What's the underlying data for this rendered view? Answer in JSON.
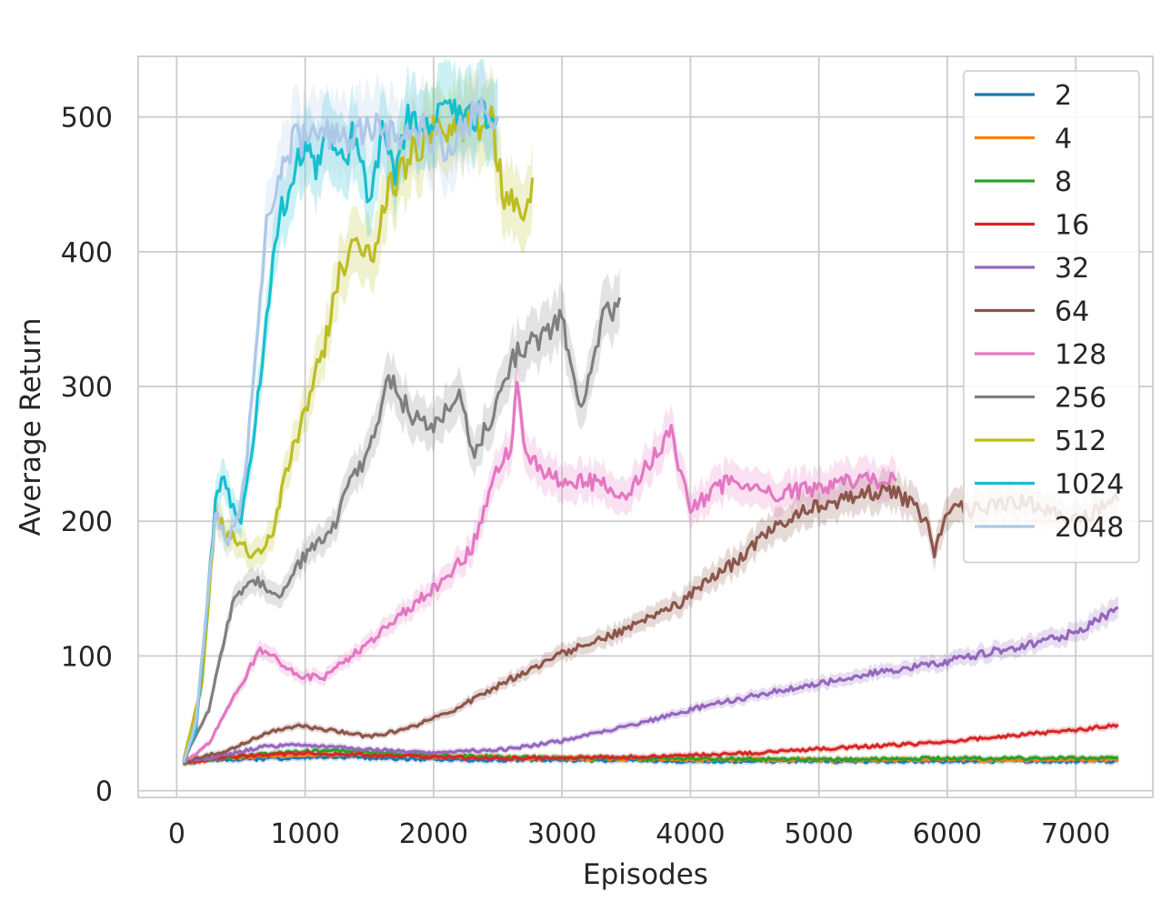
{
  "chart_data": {
    "type": "line",
    "title": "",
    "xlabel": "Episodes",
    "ylabel": "Average Return",
    "xlim": [
      -300,
      7600
    ],
    "ylim": [
      -5,
      545
    ],
    "x_ticks": [
      0,
      1000,
      2000,
      3000,
      4000,
      5000,
      6000,
      7000
    ],
    "y_ticks": [
      0,
      100,
      200,
      300,
      400,
      500
    ],
    "x_tick_labels": [
      "0",
      "1000",
      "2000",
      "3000",
      "4000",
      "5000",
      "6000",
      "7000"
    ],
    "y_tick_labels": [
      "0",
      "100",
      "200",
      "300",
      "400",
      "500"
    ],
    "grid": true,
    "legend_position": "top-right",
    "series": [
      {
        "name": "2",
        "color": "#1f77b4",
        "points": [
          [
            50,
            21
          ],
          [
            300,
            23
          ],
          [
            800,
            24
          ],
          [
            1200,
            25
          ],
          [
            1700,
            24
          ],
          [
            2200,
            23
          ],
          [
            3000,
            23
          ],
          [
            4000,
            22
          ],
          [
            5000,
            22
          ],
          [
            6000,
            22
          ],
          [
            7000,
            22
          ],
          [
            7330,
            22
          ]
        ]
      },
      {
        "name": "4",
        "color": "#ff7f0e",
        "points": [
          [
            50,
            21
          ],
          [
            300,
            24
          ],
          [
            800,
            26
          ],
          [
            1200,
            27
          ],
          [
            1700,
            26
          ],
          [
            2200,
            25
          ],
          [
            3000,
            24
          ],
          [
            4000,
            23
          ],
          [
            5000,
            23
          ],
          [
            6000,
            23
          ],
          [
            7000,
            23
          ],
          [
            7330,
            23
          ]
        ]
      },
      {
        "name": "8",
        "color": "#2ca02c",
        "points": [
          [
            50,
            21
          ],
          [
            300,
            24
          ],
          [
            800,
            28
          ],
          [
            1200,
            30
          ],
          [
            1800,
            27
          ],
          [
            2500,
            25
          ],
          [
            3200,
            24
          ],
          [
            4000,
            24
          ],
          [
            5000,
            23
          ],
          [
            6000,
            24
          ],
          [
            7000,
            24
          ],
          [
            7330,
            25
          ]
        ]
      },
      {
        "name": "16",
        "color": "#d62728",
        "points": [
          [
            50,
            21
          ],
          [
            400,
            25
          ],
          [
            1000,
            28
          ],
          [
            1600,
            26
          ],
          [
            2500,
            24
          ],
          [
            3500,
            25
          ],
          [
            4300,
            27
          ],
          [
            5000,
            31
          ],
          [
            5800,
            35
          ],
          [
            6400,
            40
          ],
          [
            7000,
            45
          ],
          [
            7330,
            49
          ]
        ]
      },
      {
        "name": "32",
        "color": "#9467bd",
        "points": [
          [
            50,
            21
          ],
          [
            400,
            27
          ],
          [
            700,
            33
          ],
          [
            1000,
            34
          ],
          [
            1400,
            31
          ],
          [
            2000,
            28
          ],
          [
            2600,
            31
          ],
          [
            3000,
            37
          ],
          [
            3600,
            50
          ],
          [
            4200,
            65
          ],
          [
            4800,
            76
          ],
          [
            5400,
            87
          ],
          [
            6000,
            96
          ],
          [
            6600,
            108
          ],
          [
            7000,
            117
          ],
          [
            7330,
            136
          ]
        ]
      },
      {
        "name": "64",
        "color": "#8c564b",
        "points": [
          [
            50,
            21
          ],
          [
            400,
            30
          ],
          [
            700,
            43
          ],
          [
            950,
            48
          ],
          [
            1200,
            45
          ],
          [
            1500,
            40
          ],
          [
            1800,
            46
          ],
          [
            2200,
            62
          ],
          [
            2600,
            83
          ],
          [
            3000,
            102
          ],
          [
            3500,
            120
          ],
          [
            3900,
            138
          ],
          [
            4300,
            166
          ],
          [
            4700,
            198
          ],
          [
            5000,
            212
          ],
          [
            5300,
            220
          ],
          [
            5600,
            222
          ],
          [
            5850,
            200
          ],
          [
            5900,
            176
          ],
          [
            6000,
            210
          ],
          [
            6200,
            208
          ],
          [
            6600,
            215
          ],
          [
            7000,
            200
          ],
          [
            7330,
            215
          ]
        ]
      },
      {
        "name": "128",
        "color": "#e377c2",
        "points": [
          [
            50,
            21
          ],
          [
            250,
            35
          ],
          [
            450,
            70
          ],
          [
            650,
            105
          ],
          [
            780,
            97
          ],
          [
            950,
            85
          ],
          [
            1150,
            84
          ],
          [
            1300,
            95
          ],
          [
            1500,
            110
          ],
          [
            1800,
            135
          ],
          [
            2100,
            158
          ],
          [
            2300,
            180
          ],
          [
            2450,
            228
          ],
          [
            2600,
            256
          ],
          [
            2650,
            302
          ],
          [
            2700,
            255
          ],
          [
            2900,
            233
          ],
          [
            3200,
            230
          ],
          [
            3500,
            220
          ],
          [
            3850,
            265
          ],
          [
            4000,
            210
          ],
          [
            4300,
            230
          ],
          [
            4700,
            220
          ],
          [
            5000,
            225
          ],
          [
            5300,
            232
          ],
          [
            5600,
            230
          ]
        ]
      },
      {
        "name": "256",
        "color": "#7f7f7f",
        "points": [
          [
            50,
            21
          ],
          [
            250,
            60
          ],
          [
            450,
            145
          ],
          [
            650,
            155
          ],
          [
            800,
            145
          ],
          [
            1000,
            175
          ],
          [
            1200,
            190
          ],
          [
            1350,
            230
          ],
          [
            1500,
            250
          ],
          [
            1650,
            310
          ],
          [
            1800,
            282
          ],
          [
            2000,
            268
          ],
          [
            2200,
            300
          ],
          [
            2300,
            250
          ],
          [
            2450,
            275
          ],
          [
            2600,
            320
          ],
          [
            2800,
            333
          ],
          [
            3000,
            350
          ],
          [
            3100,
            300
          ],
          [
            3150,
            283
          ],
          [
            3300,
            345
          ],
          [
            3450,
            366
          ]
        ]
      },
      {
        "name": "512",
        "color": "#bcbd22",
        "points": [
          [
            50,
            21
          ],
          [
            200,
            80
          ],
          [
            300,
            205
          ],
          [
            400,
            190
          ],
          [
            600,
            175
          ],
          [
            750,
            190
          ],
          [
            850,
            235
          ],
          [
            1000,
            280
          ],
          [
            1150,
            330
          ],
          [
            1250,
            380
          ],
          [
            1400,
            405
          ],
          [
            1550,
            400
          ],
          [
            1650,
            445
          ],
          [
            1800,
            470
          ],
          [
            2000,
            490
          ],
          [
            2300,
            495
          ],
          [
            2450,
            500
          ],
          [
            2550,
            440
          ],
          [
            2700,
            425
          ],
          [
            2770,
            455
          ]
        ]
      },
      {
        "name": "1024",
        "color": "#17becf",
        "points": [
          [
            50,
            21
          ],
          [
            150,
            45
          ],
          [
            300,
            210
          ],
          [
            350,
            232
          ],
          [
            420,
            215
          ],
          [
            500,
            200
          ],
          [
            580,
            250
          ],
          [
            700,
            350
          ],
          [
            800,
            425
          ],
          [
            1000,
            480
          ],
          [
            1100,
            460
          ],
          [
            1200,
            490
          ],
          [
            1300,
            470
          ],
          [
            1400,
            490
          ],
          [
            1500,
            440
          ],
          [
            1600,
            490
          ],
          [
            1700,
            450
          ],
          [
            1800,
            500
          ],
          [
            2200,
            500
          ],
          [
            2500,
            500
          ]
        ]
      },
      {
        "name": "2048",
        "color": "#aec7e8",
        "points": [
          [
            50,
            21
          ],
          [
            150,
            50
          ],
          [
            300,
            205
          ],
          [
            400,
            185
          ],
          [
            500,
            210
          ],
          [
            600,
            300
          ],
          [
            700,
            430
          ],
          [
            900,
            480
          ],
          [
            1100,
            490
          ],
          [
            1300,
            480
          ],
          [
            1500,
            495
          ],
          [
            1700,
            485
          ],
          [
            1900,
            490
          ],
          [
            2100,
            480
          ],
          [
            2300,
            500
          ],
          [
            2500,
            500
          ]
        ]
      }
    ]
  }
}
